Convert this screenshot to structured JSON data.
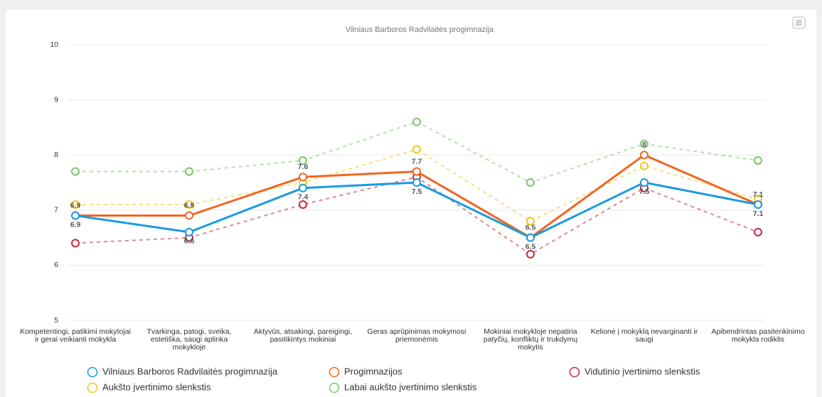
{
  "chart_data": {
    "type": "line",
    "title": "Vilniaus Barboros Radvilaitės progimnazija",
    "categories": [
      "Kompetentingi, patikimi mokytojai ir gerai veikianti mokykla",
      "Tvarkinga, patogi, sveika, estetiška, saugi aplinka mokykloje",
      "Aktyvūs, atsakingi, pareigingi, pasitikintys mokiniai",
      "Geras aprūpinimas mokymosi priemonėmis",
      "Mokiniai mokykloje nepatiria patyčių, konfliktų ir trukdymų mokytis",
      "Kelionė į mokyklą nevarginanti ir saugi",
      "Apibendrintas pasitenkinimo mokykla rodiklis"
    ],
    "series": [
      {
        "name": "Vilniaus Barboros Radvilaitės progimnazija",
        "color": "#1a9ae0",
        "dashed": false,
        "data_labels": true,
        "values": [
          6.9,
          6.6,
          7.4,
          7.5,
          6.5,
          7.5,
          7.1
        ]
      },
      {
        "name": "Progimnazijos",
        "color": "#f26522",
        "dashed": false,
        "data_labels": true,
        "values": [
          6.9,
          6.9,
          7.6,
          7.7,
          6.5,
          8,
          7.1
        ]
      },
      {
        "name": "Vidutinio įvertinimo slenkstis",
        "color": "#c0283a",
        "dashed": true,
        "data_labels": false,
        "values": [
          6.4,
          6.5,
          7.1,
          7.6,
          6.2,
          7.4,
          6.6
        ]
      },
      {
        "name": "Aukšto įvertinimo slenkstis",
        "color": "#f5c518",
        "dashed": true,
        "data_labels": false,
        "values": [
          7.1,
          7.1,
          7.5,
          8.1,
          6.8,
          7.8,
          7.2
        ]
      },
      {
        "name": "Labai aukšto įvertinimo slenkstis",
        "color": "#7dc46d",
        "dashed": true,
        "data_labels": false,
        "values": [
          7.7,
          7.7,
          7.9,
          8.6,
          7.5,
          8.2,
          7.9
        ]
      }
    ],
    "ylim": [
      5,
      10
    ],
    "yticks": [
      5,
      6,
      7,
      8,
      9,
      10
    ],
    "grid": true,
    "legend": "bottom"
  }
}
